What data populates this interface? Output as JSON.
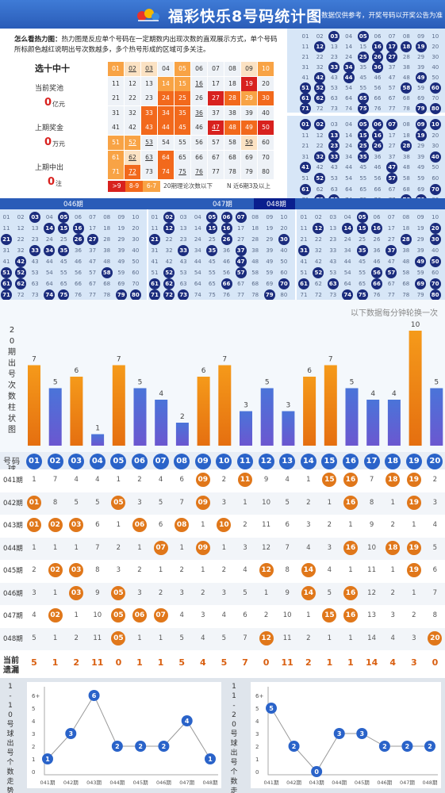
{
  "header": {
    "title": "福彩快乐8号码统计图",
    "note": "数据仅供参考，开奖号码以开奖公告为准"
  },
  "hint": {
    "label": "怎么看热力图：",
    "text": "热力图是反应单个号码在一定期数内出现次数的直观展示方式，单个号码所标颜色越红说明出号次数越多，多个热号形成的区域可多关注。"
  },
  "prizes": {
    "game": "选十中十",
    "current_label": "当前奖池",
    "current_value": "0",
    "current_unit": "亿元",
    "last_prize_label": "上期奖金",
    "last_prize_value": "0",
    "last_prize_unit": "万元",
    "last_winners_label": "上期中出",
    "last_winners_value": "0",
    "last_winners_unit": "注"
  },
  "heat": {
    "legend": [
      ">9",
      "8-9",
      "6-7"
    ],
    "legend_note": "20期理论次数以下",
    "legend_note2": "N 近6期3及以上",
    "levels": [
      [
        2,
        1,
        1,
        0,
        2,
        0,
        0,
        0,
        1,
        2
      ],
      [
        0,
        0,
        0,
        2,
        2,
        0,
        0,
        0,
        4,
        0
      ],
      [
        0,
        0,
        0,
        3,
        3,
        0,
        4,
        3,
        2,
        3
      ],
      [
        0,
        0,
        3,
        3,
        3,
        0,
        0,
        0,
        0,
        0
      ],
      [
        0,
        0,
        3,
        3,
        3,
        0,
        4,
        3,
        3,
        4
      ],
      [
        2,
        2,
        0,
        0,
        0,
        0,
        0,
        0,
        1,
        0
      ],
      [
        2,
        1,
        0,
        3,
        0,
        0,
        0,
        0,
        0,
        0
      ],
      [
        2,
        3,
        0,
        3,
        0,
        0,
        0,
        0,
        0,
        0
      ]
    ],
    "underlined": [
      2,
      3,
      16,
      36,
      47,
      52,
      53,
      59,
      62,
      63,
      72,
      75,
      76
    ]
  },
  "draw_labels": {
    "p046": "046期",
    "p047": "047期",
    "p048": "048期"
  },
  "draws": {
    "p041": [
      3,
      5,
      12,
      16,
      17,
      18,
      19,
      25,
      26,
      27,
      33,
      34,
      36,
      42,
      44,
      49,
      51,
      52,
      58,
      60,
      61,
      62,
      65,
      71,
      75,
      79,
      80
    ],
    "p042": [
      1,
      2,
      5,
      6,
      7,
      9,
      10,
      13,
      15,
      16,
      19,
      23,
      25,
      26,
      28,
      32,
      33,
      35,
      40,
      41,
      47,
      52,
      57,
      61,
      70,
      72,
      73,
      78,
      79
    ],
    "p046": [
      3,
      5,
      14,
      15,
      16,
      21,
      26,
      27,
      33,
      34,
      35,
      42,
      51,
      52,
      58,
      61,
      62,
      71,
      74,
      75,
      79,
      80
    ],
    "p047": [
      2,
      5,
      6,
      7,
      12,
      15,
      16,
      21,
      26,
      30,
      33,
      35,
      37,
      47,
      52,
      57,
      61,
      62,
      66,
      70,
      71,
      72,
      73,
      79
    ],
    "p048": [
      5,
      12,
      14,
      15,
      16,
      20,
      28,
      30,
      31,
      35,
      37,
      49,
      50,
      52,
      56,
      57,
      61,
      63,
      66,
      69,
      70,
      74,
      75,
      80
    ]
  },
  "rotate_note": "以下数据每分钟轮换一次",
  "chart_data": {
    "type": "bar",
    "ylabel": "20期出号次数柱状图",
    "categories": [
      "01",
      "02",
      "03",
      "04",
      "05",
      "06",
      "07",
      "08",
      "09",
      "10",
      "11",
      "12",
      "13",
      "14",
      "15",
      "16",
      "17",
      "18",
      "19",
      "20"
    ],
    "values": [
      7,
      5,
      6,
      1,
      7,
      5,
      4,
      2,
      6,
      7,
      3,
      5,
      3,
      6,
      7,
      5,
      4,
      4,
      10,
      5
    ],
    "highlight": [
      "01",
      "03",
      "05",
      "09",
      "10",
      "14",
      "15",
      "19"
    ]
  },
  "table": {
    "hdr_label": "号码球",
    "periods": [
      "041期",
      "042期",
      "043期",
      "044期",
      "045期",
      "046期",
      "047期",
      "048期"
    ],
    "rows": [
      [
        [
          "1",
          0
        ],
        [
          "7",
          0
        ],
        [
          "4",
          0
        ],
        [
          "4",
          0
        ],
        [
          "1",
          0
        ],
        [
          "2",
          0
        ],
        [
          "4",
          0
        ],
        [
          "6",
          0
        ],
        [
          "09",
          1
        ],
        [
          "2",
          0
        ],
        [
          "11",
          1
        ],
        [
          "9",
          0
        ],
        [
          "4",
          0
        ],
        [
          "1",
          0
        ],
        [
          "15",
          1
        ],
        [
          "16",
          1
        ],
        [
          "7",
          0
        ],
        [
          "18",
          1
        ],
        [
          "19",
          1
        ],
        [
          "2",
          0
        ]
      ],
      [
        [
          "01",
          1
        ],
        [
          "8",
          0
        ],
        [
          "5",
          0
        ],
        [
          "5",
          0
        ],
        [
          "05",
          1
        ],
        [
          "3",
          0
        ],
        [
          "5",
          0
        ],
        [
          "7",
          0
        ],
        [
          "09",
          1
        ],
        [
          "3",
          0
        ],
        [
          "1",
          0
        ],
        [
          "10",
          0
        ],
        [
          "5",
          0
        ],
        [
          "2",
          0
        ],
        [
          "1",
          0
        ],
        [
          "16",
          1
        ],
        [
          "8",
          0
        ],
        [
          "1",
          0
        ],
        [
          "19",
          1
        ],
        [
          "3",
          0
        ]
      ],
      [
        [
          "01",
          1
        ],
        [
          "02",
          1
        ],
        [
          "03",
          1
        ],
        [
          "6",
          0
        ],
        [
          "1",
          0
        ],
        [
          "06",
          1
        ],
        [
          "6",
          0
        ],
        [
          "08",
          1
        ],
        [
          "1",
          0
        ],
        [
          "10",
          1
        ],
        [
          "2",
          0
        ],
        [
          "11",
          0
        ],
        [
          "6",
          0
        ],
        [
          "3",
          0
        ],
        [
          "2",
          0
        ],
        [
          "1",
          0
        ],
        [
          "9",
          0
        ],
        [
          "2",
          0
        ],
        [
          "1",
          0
        ],
        [
          "4",
          0
        ]
      ],
      [
        [
          "1",
          0
        ],
        [
          "1",
          0
        ],
        [
          "1",
          0
        ],
        [
          "7",
          0
        ],
        [
          "2",
          0
        ],
        [
          "1",
          0
        ],
        [
          "07",
          1
        ],
        [
          "1",
          0
        ],
        [
          "09",
          1
        ],
        [
          "1",
          0
        ],
        [
          "3",
          0
        ],
        [
          "12",
          0
        ],
        [
          "7",
          0
        ],
        [
          "4",
          0
        ],
        [
          "3",
          0
        ],
        [
          "16",
          1
        ],
        [
          "10",
          0
        ],
        [
          "18",
          1
        ],
        [
          "19",
          1
        ],
        [
          "5",
          0
        ]
      ],
      [
        [
          "2",
          0
        ],
        [
          "02",
          1
        ],
        [
          "03",
          1
        ],
        [
          "8",
          0
        ],
        [
          "3",
          0
        ],
        [
          "2",
          0
        ],
        [
          "1",
          0
        ],
        [
          "2",
          0
        ],
        [
          "1",
          0
        ],
        [
          "2",
          0
        ],
        [
          "4",
          0
        ],
        [
          "12",
          1
        ],
        [
          "8",
          0
        ],
        [
          "14",
          1
        ],
        [
          "4",
          0
        ],
        [
          "1",
          0
        ],
        [
          "11",
          0
        ],
        [
          "1",
          0
        ],
        [
          "19",
          1
        ],
        [
          "6",
          0
        ]
      ],
      [
        [
          "3",
          0
        ],
        [
          "1",
          0
        ],
        [
          "03",
          1
        ],
        [
          "9",
          0
        ],
        [
          "05",
          1
        ],
        [
          "3",
          0
        ],
        [
          "2",
          0
        ],
        [
          "3",
          0
        ],
        [
          "2",
          0
        ],
        [
          "3",
          0
        ],
        [
          "5",
          0
        ],
        [
          "1",
          0
        ],
        [
          "9",
          0
        ],
        [
          "14",
          1
        ],
        [
          "5",
          0
        ],
        [
          "16",
          1
        ],
        [
          "12",
          0
        ],
        [
          "2",
          0
        ],
        [
          "1",
          0
        ],
        [
          "7",
          0
        ]
      ],
      [
        [
          "4",
          0
        ],
        [
          "02",
          1
        ],
        [
          "1",
          0
        ],
        [
          "10",
          0
        ],
        [
          "05",
          1
        ],
        [
          "06",
          1
        ],
        [
          "07",
          1
        ],
        [
          "4",
          0
        ],
        [
          "3",
          0
        ],
        [
          "4",
          0
        ],
        [
          "6",
          0
        ],
        [
          "2",
          0
        ],
        [
          "10",
          0
        ],
        [
          "1",
          0
        ],
        [
          "15",
          1
        ],
        [
          "16",
          1
        ],
        [
          "13",
          0
        ],
        [
          "3",
          0
        ],
        [
          "2",
          0
        ],
        [
          "8",
          0
        ]
      ],
      [
        [
          "5",
          0
        ],
        [
          "1",
          0
        ],
        [
          "2",
          0
        ],
        [
          "11",
          0
        ],
        [
          "05",
          1
        ],
        [
          "1",
          0
        ],
        [
          "1",
          0
        ],
        [
          "5",
          0
        ],
        [
          "4",
          0
        ],
        [
          "5",
          0
        ],
        [
          "7",
          0
        ],
        [
          "12",
          1
        ],
        [
          "11",
          0
        ],
        [
          "2",
          0
        ],
        [
          "1",
          0
        ],
        [
          "1",
          0
        ],
        [
          "14",
          0
        ],
        [
          "4",
          0
        ],
        [
          "3",
          0
        ],
        [
          "20",
          1
        ]
      ]
    ],
    "miss_label": "当前遗漏",
    "miss": [
      "5",
      "1",
      "2",
      "11",
      "0",
      "1",
      "1",
      "5",
      "4",
      "5",
      "7",
      "0",
      "11",
      "2",
      "1",
      "1",
      "14",
      "4",
      "3",
      "0"
    ]
  },
  "trend1": {
    "title": "1-10号球出号个数走势图",
    "values": [
      1,
      3,
      6,
      2,
      2,
      2,
      4,
      1
    ],
    "xlabels": [
      "041期",
      "042期",
      "043期",
      "044期",
      "045期",
      "046期",
      "047期",
      "048期"
    ],
    "yticks": [
      "6+",
      "5",
      "4",
      "3",
      "2",
      "1",
      "0"
    ]
  },
  "trend2": {
    "title": "11-20号球出号个数走势图",
    "values": [
      5,
      2,
      0,
      3,
      3,
      2,
      2,
      2
    ],
    "xlabels": [
      "041期",
      "042期",
      "043期",
      "044期",
      "045期",
      "046期",
      "047期",
      "048期"
    ],
    "yticks": [
      "6+",
      "5",
      "4",
      "3",
      "2",
      "1",
      "0"
    ]
  }
}
